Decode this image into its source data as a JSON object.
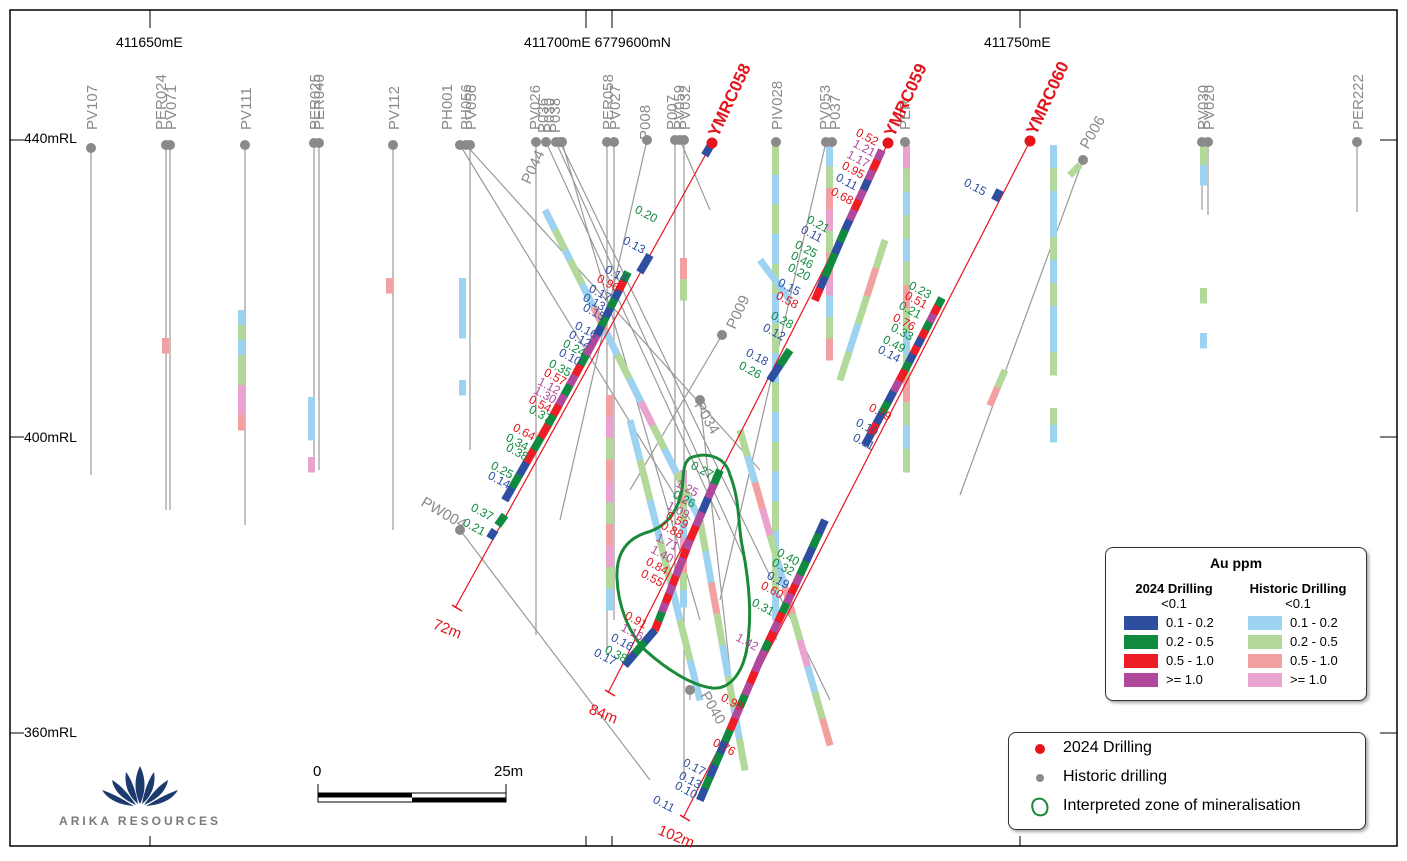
{
  "axes": {
    "easting_labels": [
      "411650mE",
      "411700mE 6779600mN",
      "411750mE"
    ],
    "rl_labels": [
      "440mRL",
      "400mRL",
      "360mRL"
    ]
  },
  "historic_holes": [
    "PV107",
    "PER024",
    "PV071",
    "PV111",
    "PER025",
    "PER040",
    "PV112",
    "PH001",
    "PH056",
    "PV056",
    "PV026",
    "P036",
    "P030",
    "P038",
    "PER058",
    "PV027",
    "P008",
    "P007",
    "PV059",
    "PV032",
    "P044",
    "P009",
    "P034",
    "P040",
    "PW004",
    "PIV028",
    "PV053",
    "P037",
    "PER",
    "P006",
    "PV030",
    "PV020",
    "PER222"
  ],
  "new_holes": [
    {
      "name": "YMRC058",
      "depth": "72m"
    },
    {
      "name": "YMRC059",
      "depth": "84m"
    },
    {
      "name": "YMRC060",
      "depth": "102m"
    }
  ],
  "intervals": {
    "ymrc058": [
      "0.20",
      "0.13",
      "0.14",
      "0.96",
      "0.17",
      "0.13",
      "0.15",
      "0.16",
      "0.12",
      "0.24",
      "0.10",
      "0.35",
      "0.57",
      "1.12",
      "1.30",
      "0.54",
      "0.37",
      "0.64",
      "0.34",
      "0.38",
      "0.25",
      "0.14",
      "0.37",
      "0.21"
    ],
    "ymrc059": [
      "0.27",
      "1.25",
      "0.26",
      "1.09",
      "0.59",
      "0.88",
      "1.71",
      "1.40",
      "0.84",
      "0.55",
      "0.91",
      "1.16",
      "0.16",
      "0.38",
      "0.17"
    ],
    "ymrc060": [
      "0.15",
      "0.23",
      "0.51",
      "0.21",
      "0.76",
      "0.33",
      "0.49",
      "0.14",
      "0.79",
      "0.10",
      "0.11",
      "0.40",
      "0.32",
      "0.19",
      "0.60",
      "0.31",
      "1.42",
      "0.99",
      "0.76",
      "0.17",
      "0.13",
      "0.10",
      "0.11"
    ],
    "pv053": [
      "0.52",
      "1.21",
      "1.17",
      "0.95",
      "0.11",
      "0.68",
      "0.21",
      "0.11",
      "0.25",
      "0.46",
      "0.20",
      "0.15",
      "0.58",
      "0.28",
      "0.12",
      "0.18",
      "0.26"
    ]
  },
  "au_legend": {
    "title": "Au ppm",
    "col_2024": "2024 Drilling",
    "col_historic": "Historic Drilling",
    "ranges": [
      "<0.1",
      "0.1 - 0.2",
      "0.2 - 0.5",
      "0.5 - 1.0",
      ">= 1.0"
    ],
    "colors_2024": [
      "#2e4ea0",
      "#0f8a3e",
      "#ee1c25",
      "#b0489b"
    ],
    "colors_historic": [
      "#9dd3f0",
      "#b2d99a",
      "#f3a0a0",
      "#eaa2cf"
    ]
  },
  "symbol_legend": {
    "drilling_2024": "2024 Drilling",
    "historic_drilling": "Historic drilling",
    "zone": "Interpreted zone of mineralisation"
  },
  "scale_bar": {
    "start": "0",
    "end": "25m"
  },
  "logo": {
    "text": "ARIKA RESOURCES"
  },
  "colors": {
    "new_collar": "#e8141c",
    "historic_collar": "#8a8a8a",
    "zone_outline": "#1a8a3a"
  }
}
